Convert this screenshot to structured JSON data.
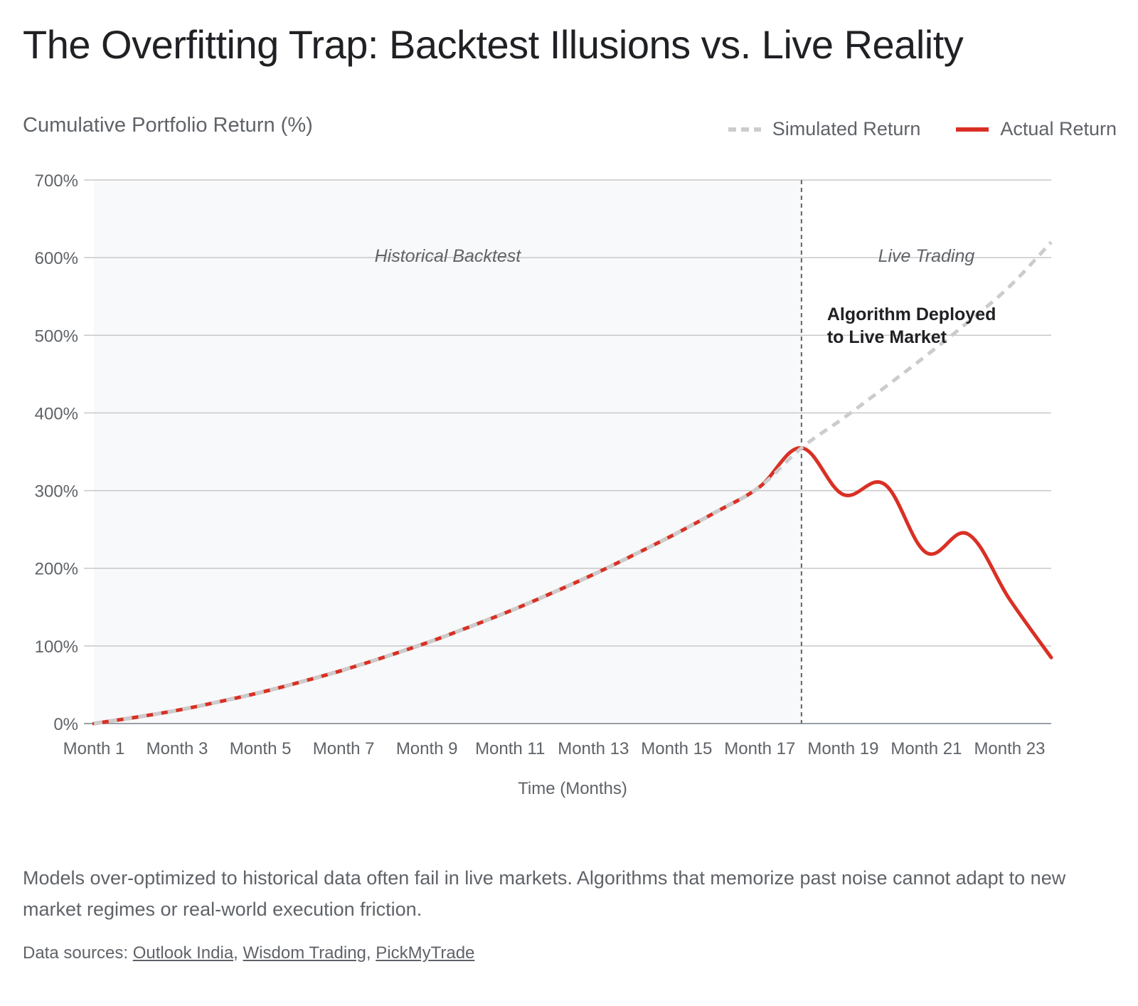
{
  "title": "The Overfitting Trap: Backtest Illusions vs. Live Reality",
  "description": "Models over-optimized to historical data often fail in live markets. Algorithms that memorize past noise cannot adapt to new market regimes or real-world execution friction.",
  "sources": {
    "label": "Data sources:",
    "links": [
      "Outlook India",
      "Wisdom Trading",
      "PickMyTrade"
    ]
  },
  "legend": {
    "simulated": "Simulated Return",
    "actual": "Actual Return"
  },
  "colors": {
    "simulated": "#cccccc",
    "actual": "#d93025",
    "backtest_shade": "#f8f9fa",
    "grid": "#c8c8c8",
    "deploy_line": "#5f6368"
  },
  "chart_data": {
    "type": "line",
    "title": "The Overfitting Trap: Backtest Illusions vs. Live Reality",
    "ylabel": "Cumulative Portfolio Return (%)",
    "xlabel": "Time (Months)",
    "ylim": [
      0,
      700
    ],
    "yticks": [
      0,
      100,
      200,
      300,
      400,
      500,
      600,
      700
    ],
    "ytick_labels": [
      "0%",
      "100%",
      "200%",
      "300%",
      "400%",
      "500%",
      "600%",
      "700%"
    ],
    "grid": true,
    "legend_position": "top-right",
    "categories": [
      "Month 1",
      "Month 2",
      "Month 3",
      "Month 4",
      "Month 5",
      "Month 6",
      "Month 7",
      "Month 8",
      "Month 9",
      "Month 10",
      "Month 11",
      "Month 12",
      "Month 13",
      "Month 14",
      "Month 15",
      "Month 16",
      "Month 17",
      "Month 18",
      "Month 19",
      "Month 20",
      "Month 21",
      "Month 22",
      "Month 23",
      "Month 24"
    ],
    "xtick_labels": [
      "Month 1",
      "Month 3",
      "Month 5",
      "Month 7",
      "Month 9",
      "Month 11",
      "Month 13",
      "Month 15",
      "Month 17",
      "Month 19",
      "Month 21",
      "Month 23"
    ],
    "series": [
      {
        "name": "Simulated Return",
        "style": "dashed",
        "values": [
          0,
          8,
          17,
          28,
          40,
          54,
          69,
          86,
          104,
          124,
          145,
          168,
          192,
          218,
          245,
          274,
          305,
          355,
          393,
          433,
          474,
          517,
          563,
          620
        ]
      },
      {
        "name": "Actual Return",
        "style": "solid",
        "values": [
          0,
          8,
          17,
          28,
          40,
          54,
          69,
          86,
          104,
          124,
          145,
          168,
          192,
          218,
          245,
          274,
          305,
          355,
          295,
          308,
          220,
          244,
          160,
          85
        ]
      }
    ],
    "regions": [
      {
        "label": "Historical Backtest",
        "from": "Month 1",
        "to": "Month 18"
      },
      {
        "label": "Live Trading",
        "from": "Month 18",
        "to": "Month 24"
      }
    ],
    "annotations": [
      {
        "text_lines": [
          "Algorithm Deployed",
          "to Live Market"
        ],
        "at": "Month 18"
      }
    ]
  }
}
